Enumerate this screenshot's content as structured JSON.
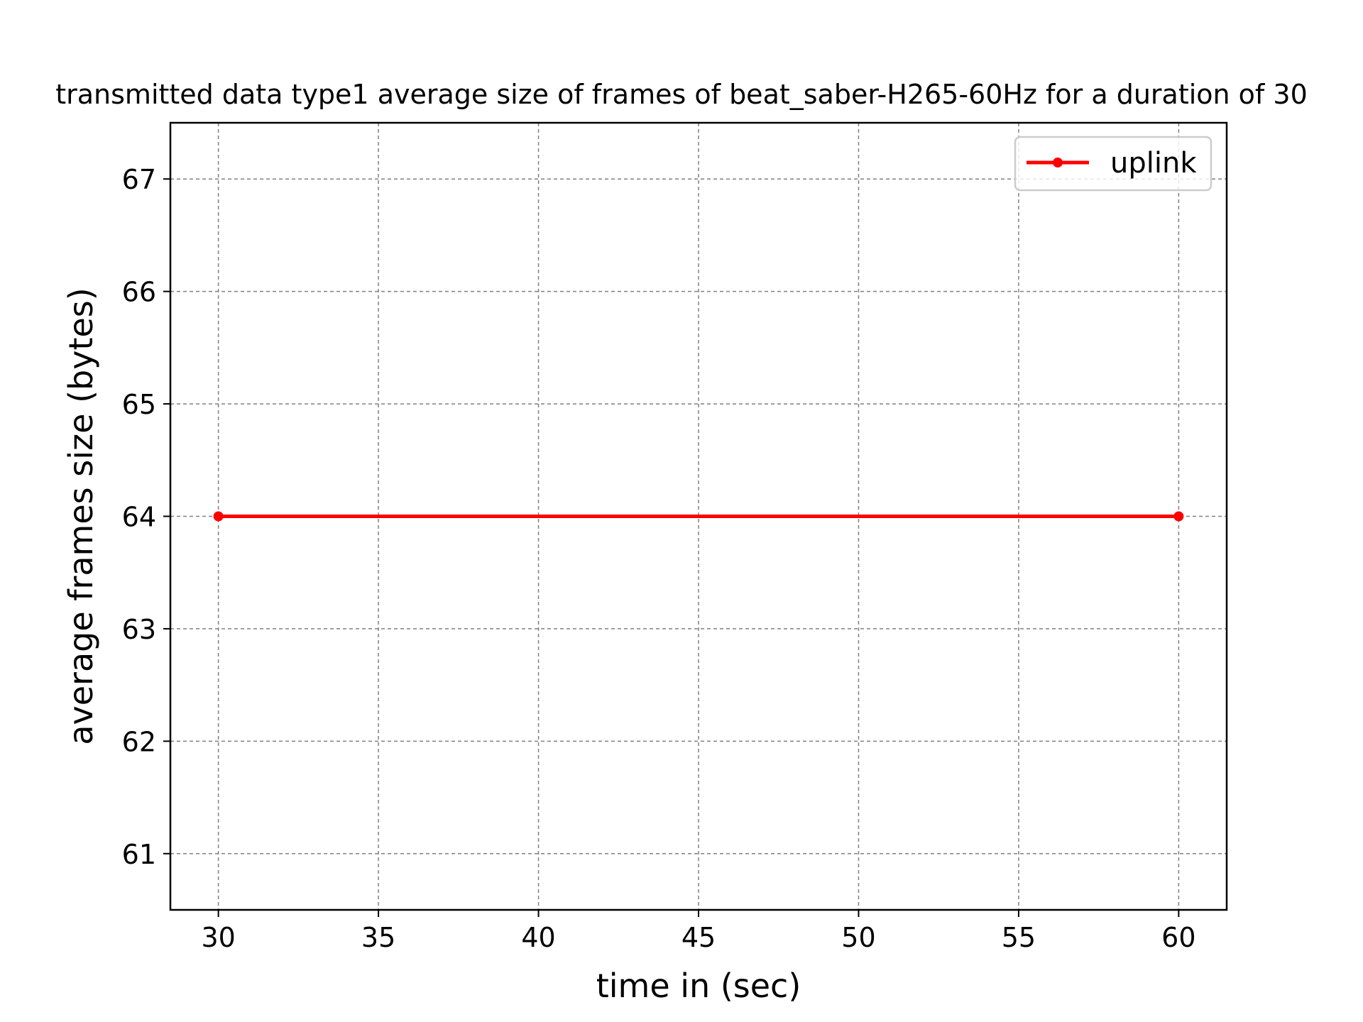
{
  "chart_data": {
    "type": "line",
    "title": "transmitted data type1 average size of frames of beat_saber-H265-60Hz for a duration of 30",
    "xlabel": "time in (sec)",
    "ylabel": "average frames size (bytes)",
    "xlim": [
      28.5,
      61.5
    ],
    "ylim": [
      60.5,
      67.5
    ],
    "xticks": [
      30,
      35,
      40,
      45,
      50,
      55,
      60
    ],
    "yticks": [
      61,
      62,
      63,
      64,
      65,
      66,
      67
    ],
    "grid": true,
    "legend_position": "top-right",
    "series": [
      {
        "name": "uplink",
        "color": "#ff0000",
        "marker": "circle",
        "x": [
          30,
          60
        ],
        "y": [
          64,
          64
        ]
      }
    ]
  }
}
